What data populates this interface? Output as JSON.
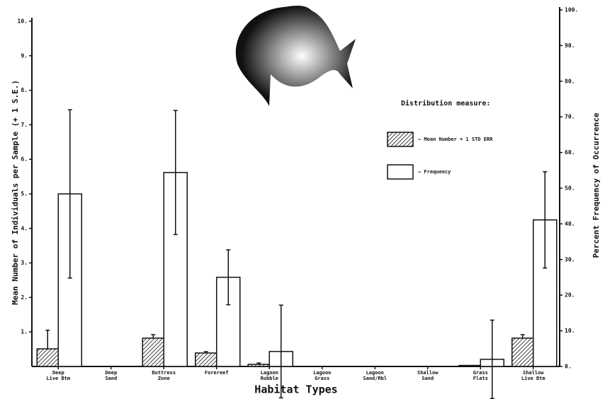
{
  "chart_data": {
    "type": "bar",
    "ylabel": "Mean Number of Individuals per Sample (+ 1 S.E.)",
    "y2label": "Percent Frequency of Occurrence",
    "xlabel": "Habitat Types",
    "legend_title": "Distribution measure:",
    "categories": [
      "Deep\nLive Btm",
      "Deep\nSand",
      "Buttress\nZone",
      "Forereef",
      "Lagoon\nRubble",
      "Lagoon\nGrass",
      "Lagoon\nSand/Rbl",
      "Shallow\nSand",
      "Grass\nFlats",
      "Shallow\nLive Btm"
    ],
    "series": [
      {
        "name": "— Mean Number + 1 STD ERR",
        "color": "#111111",
        "pattern": "hatch",
        "values": [
          0.51,
          0,
          0.82,
          0.39,
          0.06,
          0,
          0,
          0,
          0.03,
          0.82
        ],
        "errors": [
          0.54,
          null,
          0.1,
          0.04,
          0.04,
          null,
          null,
          null,
          null,
          0.1
        ]
      },
      {
        "name": "— Frequency",
        "color": "#111111",
        "pattern": "open",
        "axis": "y2",
        "values": [
          48.4,
          0,
          54.4,
          25,
          4.2,
          0,
          0,
          0,
          2,
          41.1
        ],
        "errors": [
          23.6,
          null,
          17.4,
          7.7,
          13,
          null,
          null,
          null,
          11,
          13.5
        ]
      }
    ],
    "ylim": [
      0,
      10
    ],
    "yticks": [
      {
        "value": 1,
        "label": "1."
      },
      {
        "value": 2,
        "label": "2."
      },
      {
        "value": 3,
        "label": "3."
      },
      {
        "value": 4,
        "label": "4."
      },
      {
        "value": 5,
        "label": "5."
      },
      {
        "value": 6,
        "label": "6."
      },
      {
        "value": 7,
        "label": "7."
      },
      {
        "value": 8,
        "label": "8."
      },
      {
        "value": 9,
        "label": "9."
      },
      {
        "value": 10,
        "label": "10."
      }
    ],
    "y2lim": [
      0,
      100
    ],
    "y2ticks": [
      {
        "value": 0,
        "label": "0."
      },
      {
        "value": 10,
        "label": "10."
      },
      {
        "value": 20,
        "label": "20."
      },
      {
        "value": 30,
        "label": "30."
      },
      {
        "value": 40,
        "label": "40."
      },
      {
        "value": 50,
        "label": "50."
      },
      {
        "value": 60,
        "label": "60."
      },
      {
        "value": 70,
        "label": "70."
      },
      {
        "value": 80,
        "label": "80."
      },
      {
        "value": 90,
        "label": "90."
      },
      {
        "value": 100,
        "label": "100."
      }
    ]
  }
}
